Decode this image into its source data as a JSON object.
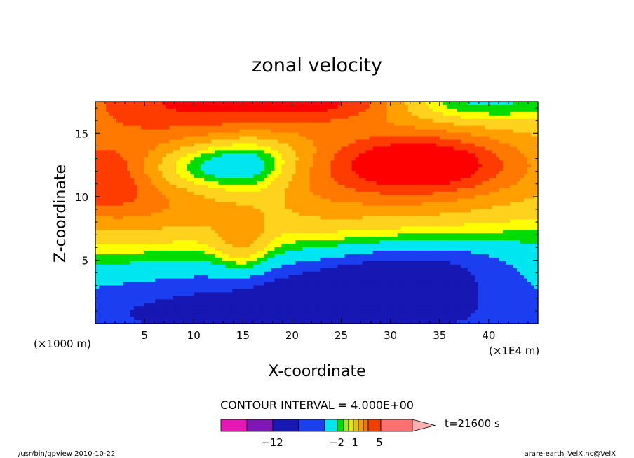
{
  "chart_data": {
    "type": "heatmap",
    "title": "zonal velocity",
    "xlabel": "X-coordinate",
    "ylabel": "Z-coordinate",
    "x_unit_left": "(×1000 m)",
    "x_unit_right": "(×1E4 m)",
    "xlim": [
      0,
      45
    ],
    "ylim": [
      0,
      17.5
    ],
    "x_ticks": [
      5,
      10,
      15,
      20,
      25,
      30,
      35,
      40
    ],
    "y_ticks": [
      5,
      10,
      15
    ],
    "contour_interval": "CONTOUR INTERVAL = 4.000E+00",
    "time_label": "t=21600 s",
    "colorbar": {
      "labels": [
        {
          "value": -12,
          "text": "−12"
        },
        {
          "value": -2,
          "text": "−2"
        },
        {
          "value": 1,
          "text": "1"
        },
        {
          "value": 5,
          "text": "5"
        }
      ],
      "bins": [
        {
          "color": "#e617b4"
        },
        {
          "color": "#7f17b4"
        },
        {
          "color": "#1717b4"
        },
        {
          "color": "#1a3ef0"
        },
        {
          "color": "#00e6f0"
        },
        {
          "color": "#00dc00"
        },
        {
          "color": "#a0e632"
        },
        {
          "color": "#e6e600"
        },
        {
          "color": "#e6c800"
        },
        {
          "color": "#f0a000"
        },
        {
          "color": "#f07800"
        },
        {
          "color": "#f04000"
        },
        {
          "color": "#ff7070"
        },
        {
          "color": "#ffb0b0"
        }
      ]
    },
    "levels": [
      {
        "threshold": -10,
        "color": "#1717b4"
      },
      {
        "threshold": -6,
        "color": "#1a3ef0"
      },
      {
        "threshold": -2,
        "color": "#00e6f0"
      },
      {
        "threshold": 0,
        "color": "#00dc00"
      },
      {
        "threshold": 2,
        "color": "#ffff00"
      },
      {
        "threshold": 5,
        "color": "#ffd21e"
      },
      {
        "threshold": 8,
        "color": "#ffa000"
      },
      {
        "threshold": 11,
        "color": "#ff7800"
      },
      {
        "threshold": 14,
        "color": "#ff3c00"
      },
      {
        "threshold": 99,
        "color": "#ff0000"
      }
    ],
    "field_features": [
      {
        "x": 22,
        "z": 0.3,
        "rx": 24,
        "rz": 2.2,
        "amp": -11,
        "angle": 0
      },
      {
        "x": 30,
        "z": 3.6,
        "rx": 8,
        "rz": 1.6,
        "amp": -9,
        "angle": -14
      },
      {
        "x": 12,
        "z": 12.4,
        "rx": 6,
        "rz": 1.3,
        "amp": -9,
        "angle": -12
      },
      {
        "x": 22,
        "z": 4,
        "rx": 25,
        "rz": 3.5,
        "amp": -7,
        "angle": -5
      },
      {
        "x": 16,
        "z": 11,
        "rx": 3,
        "rz": 2.5,
        "amp": -5,
        "angle": 0
      },
      {
        "x": 38,
        "z": 17.5,
        "rx": 7,
        "rz": 1.2,
        "amp": -7,
        "angle": 0
      },
      {
        "x": 10,
        "z": 8.5,
        "rx": 11,
        "rz": 2.8,
        "amp": 5,
        "angle": 0
      },
      {
        "x": 32,
        "z": 11.5,
        "rx": 12,
        "rz": 3.5,
        "amp": 8,
        "angle": 0
      },
      {
        "x": 33,
        "z": 12.6,
        "rx": 6,
        "rz": 1.5,
        "amp": 10,
        "angle": 0
      },
      {
        "x": 1,
        "z": 11.5,
        "rx": 5,
        "rz": 2.2,
        "amp": 11,
        "angle": 0
      },
      {
        "x": 10,
        "z": 17.5,
        "rx": 11,
        "rz": 2.2,
        "amp": 12,
        "angle": 0
      },
      {
        "x": 25,
        "z": 17.5,
        "rx": 6,
        "rz": 1,
        "amp": 7,
        "angle": 0
      },
      {
        "x": 15,
        "z": 6.5,
        "rx": 2,
        "rz": 2,
        "amp": 6,
        "angle": 0
      }
    ],
    "field_base": 2
  },
  "footer": {
    "left": "/usr/bin/gpview   2010-10-22",
    "right": "arare-earth_VelX.nc@VelX"
  }
}
